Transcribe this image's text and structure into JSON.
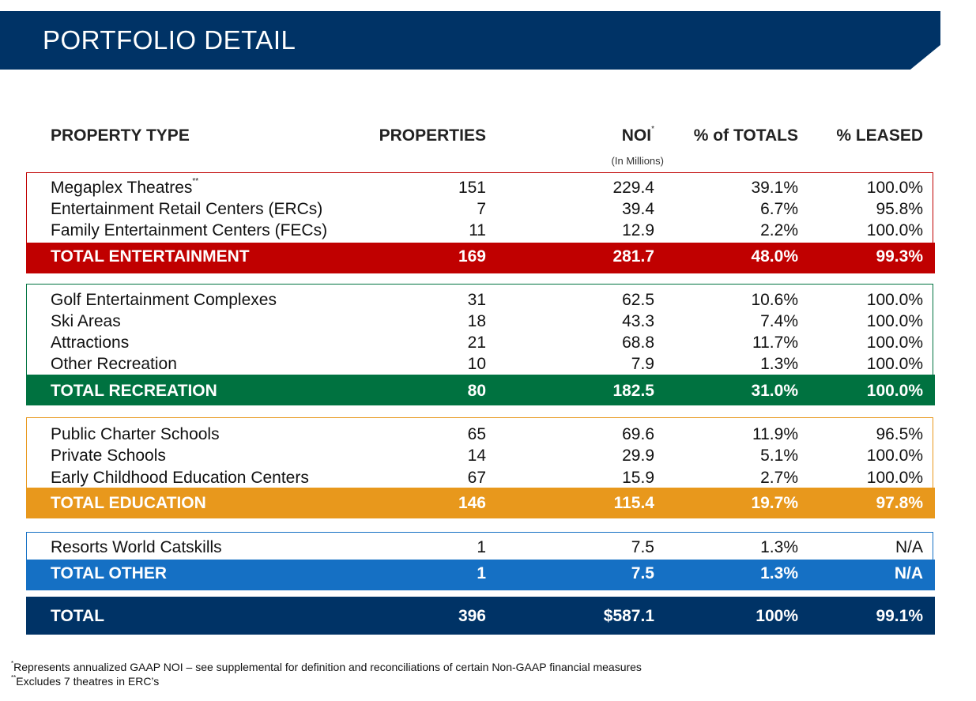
{
  "title": "PORTFOLIO DETAIL",
  "columns": {
    "property_type": "PROPERTY TYPE",
    "properties": "PROPERTIES",
    "noi": "NOI",
    "noi_mark": "*",
    "pct_totals": "% of TOTALS",
    "pct_leased": "% LEASED",
    "noi_unit": "(In Millions)"
  },
  "colors": {
    "banner": "#003366",
    "entertainment": "#C00000",
    "recreation": "#007240",
    "education": "#E8981C",
    "other": "#1570C4",
    "total": "#003366"
  },
  "entertainment": {
    "rows": [
      {
        "type": "Megaplex Theatres",
        "mark": "**",
        "properties": "151",
        "noi": "229.4",
        "pct_totals": "39.1%",
        "pct_leased": "100.0%"
      },
      {
        "type": "Entertainment Retail Centers (ERCs)",
        "properties": "7",
        "noi": "39.4",
        "pct_totals": "6.7%",
        "pct_leased": "95.8%"
      },
      {
        "type": "Family Entertainment Centers (FECs)",
        "properties": "11",
        "noi": "12.9",
        "pct_totals": "2.2%",
        "pct_leased": "100.0%"
      }
    ],
    "total": {
      "type": "TOTAL ENTERTAINMENT",
      "properties": "169",
      "noi": "281.7",
      "pct_totals": "48.0%",
      "pct_leased": "99.3%"
    }
  },
  "recreation": {
    "rows": [
      {
        "type": "Golf Entertainment Complexes",
        "properties": "31",
        "noi": "62.5",
        "pct_totals": "10.6%",
        "pct_leased": "100.0%"
      },
      {
        "type": "Ski Areas",
        "properties": "18",
        "noi": "43.3",
        "pct_totals": "7.4%",
        "pct_leased": "100.0%"
      },
      {
        "type": "Attractions",
        "properties": "21",
        "noi": "68.8",
        "pct_totals": "11.7%",
        "pct_leased": "100.0%"
      },
      {
        "type": "Other Recreation",
        "properties": "10",
        "noi": "7.9",
        "pct_totals": "1.3%",
        "pct_leased": "100.0%"
      }
    ],
    "total": {
      "type": "TOTAL RECREATION",
      "properties": "80",
      "noi": "182.5",
      "pct_totals": "31.0%",
      "pct_leased": "100.0%"
    }
  },
  "education": {
    "rows": [
      {
        "type": "Public Charter Schools",
        "properties": "65",
        "noi": "69.6",
        "pct_totals": "11.9%",
        "pct_leased": "96.5%"
      },
      {
        "type": "Private Schools",
        "properties": "14",
        "noi": "29.9",
        "pct_totals": "5.1%",
        "pct_leased": "100.0%"
      },
      {
        "type": "Early Childhood Education Centers",
        "properties": "67",
        "noi": "15.9",
        "pct_totals": "2.7%",
        "pct_leased": "100.0%"
      }
    ],
    "total": {
      "type": "TOTAL EDUCATION",
      "properties": "146",
      "noi": "115.4",
      "pct_totals": "19.7%",
      "pct_leased": "97.8%"
    }
  },
  "other": {
    "rows": [
      {
        "type": "Resorts World Catskills",
        "properties": "1",
        "noi": "7.5",
        "pct_totals": "1.3%",
        "pct_leased": "N/A"
      }
    ],
    "total": {
      "type": "TOTAL OTHER",
      "properties": "1",
      "noi": "7.5",
      "pct_totals": "1.3%",
      "pct_leased": "N/A"
    }
  },
  "grand_total": {
    "type": "TOTAL",
    "properties": "396",
    "noi": "$587.1",
    "pct_totals": "100%",
    "pct_leased": "99.1%"
  },
  "footnotes": [
    {
      "mark": "*",
      "text": "Represents annualized GAAP NOI – see supplemental for definition and reconciliations of certain Non-GAAP financial measures"
    },
    {
      "mark": "**",
      "text": "Excludes 7 theatres in ERC’s"
    }
  ]
}
